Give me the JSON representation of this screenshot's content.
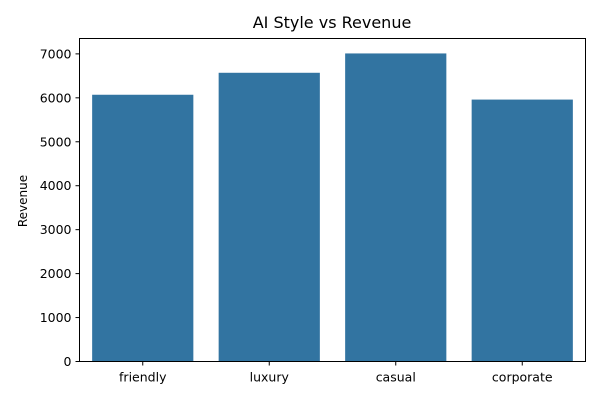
{
  "chart_data": {
    "type": "bar",
    "title": "AI Style vs Revenue",
    "xlabel": "",
    "ylabel": "Revenue",
    "categories": [
      "friendly",
      "luxury",
      "casual",
      "corporate"
    ],
    "values": [
      6070,
      6570,
      7010,
      5960
    ],
    "ylim": [
      0,
      7350
    ],
    "yticks": [
      0,
      1000,
      2000,
      3000,
      4000,
      5000,
      6000,
      7000
    ],
    "grid": false,
    "legend": "none",
    "bar_color": "#3274a1"
  }
}
